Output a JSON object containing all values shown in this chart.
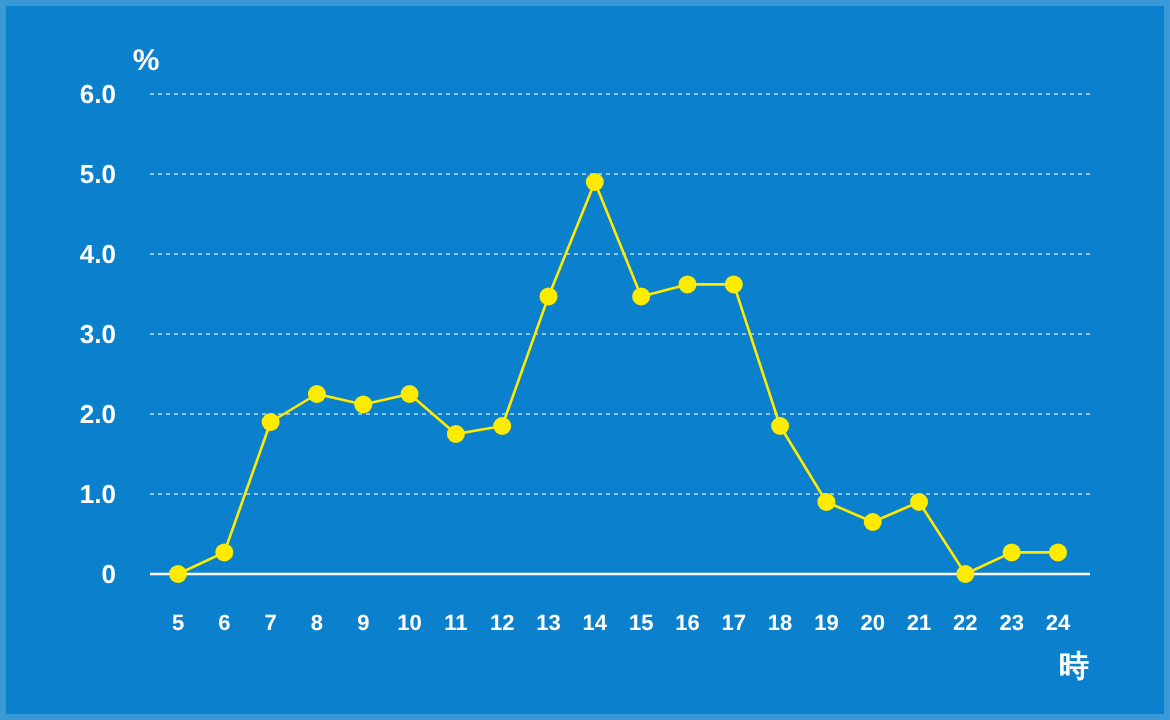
{
  "chart_data": {
    "type": "line",
    "xlabel": "時",
    "ylabel": "%",
    "categories": [
      "5",
      "6",
      "7",
      "8",
      "9",
      "10",
      "11",
      "12",
      "13",
      "14",
      "15",
      "16",
      "17",
      "18",
      "19",
      "20",
      "21",
      "22",
      "23",
      "24"
    ],
    "series": [
      {
        "color": "#ffeb00",
        "values": [
          0,
          0.27,
          1.9,
          2.25,
          2.12,
          2.25,
          1.75,
          1.85,
          3.47,
          4.9,
          3.47,
          3.62,
          3.62,
          1.85,
          0.9,
          0.65,
          0.9,
          0,
          0.27,
          0.27
        ]
      }
    ],
    "ylim": [
      0,
      6
    ],
    "yticks": [
      {
        "value": 0,
        "label": "0"
      },
      {
        "value": 1,
        "label": "1.0"
      },
      {
        "value": 2,
        "label": "2.0"
      },
      {
        "value": 3,
        "label": "3.0"
      },
      {
        "value": 4,
        "label": "4.0"
      },
      {
        "value": 5,
        "label": "5.0"
      },
      {
        "value": 6,
        "label": "6.0"
      }
    ],
    "grid": "y",
    "marker": "circle",
    "line_style": "solid"
  }
}
